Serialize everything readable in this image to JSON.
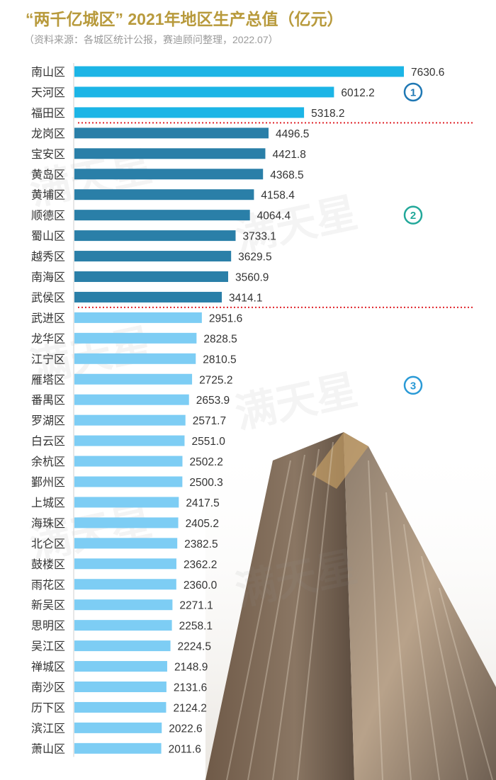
{
  "header": {
    "title": "“两千亿城区” 2021年地区生产总值（亿元）",
    "subtitle": "（资料来源：各城区统计公报，赛迪顾问整理，2022.07）"
  },
  "watermark": {
    "text": "满天星"
  },
  "colors": {
    "tier1": "#1cb5e6",
    "tier2": "#2a7fa8",
    "tier3": "#7dcdf4",
    "divider": "#e0242b",
    "title": "#b89a3c",
    "badge1": "#1f78b4",
    "badge2": "#22a89a",
    "badge3": "#2a9ad6"
  },
  "chart_data": {
    "type": "bar",
    "orientation": "horizontal",
    "categories": [
      "南山区",
      "天河区",
      "福田区",
      "龙岗区",
      "宝安区",
      "黄岛区",
      "黄埔区",
      "顺德区",
      "蜀山区",
      "越秀区",
      "南海区",
      "武侯区",
      "武进区",
      "龙华区",
      "江宁区",
      "雁塔区",
      "番禺区",
      "罗湖区",
      "白云区",
      "余杭区",
      "鄞州区",
      "上城区",
      "海珠区",
      "北仑区",
      "鼓楼区",
      "雨花区",
      "新吴区",
      "思明区",
      "吴江区",
      "禅城区",
      "南沙区",
      "历下区",
      "滨江区",
      "萧山区"
    ],
    "values": [
      7630.6,
      6012.2,
      5318.2,
      4496.5,
      4421.8,
      4368.5,
      4158.4,
      4064.4,
      3733.1,
      3629.5,
      3560.9,
      3414.1,
      2951.6,
      2828.5,
      2810.5,
      2725.2,
      2653.9,
      2571.7,
      2551.0,
      2502.2,
      2500.3,
      2417.5,
      2405.2,
      2382.5,
      2362.2,
      2360.0,
      2271.1,
      2258.1,
      2224.5,
      2148.9,
      2131.6,
      2124.2,
      2022.6,
      2011.6
    ],
    "value_labels": [
      "7630.6",
      "6012.2",
      "5318.2",
      "4496.5",
      "4421.8",
      "4368.5",
      "4158.4",
      "4064.4",
      "3733.1",
      "3629.5",
      "3560.9",
      "3414.1",
      "2951.6",
      "2828.5",
      "2810.5",
      "2725.2",
      "2653.9",
      "2571.7",
      "2551.0",
      "2502.2",
      "2500.3",
      "2417.5",
      "2405.2",
      "2382.5",
      "2362.2",
      "2360.0",
      "2271.1",
      "2258.1",
      "2224.5",
      "2148.9",
      "2131.6",
      "2124.2",
      "2022.6",
      "2011.6"
    ],
    "xlim": [
      0,
      7630.6
    ],
    "grid": false,
    "tiers": [
      {
        "label": "1",
        "start": 0,
        "end": 2,
        "color_key": "tier1",
        "badge_color_key": "badge1"
      },
      {
        "label": "2",
        "start": 3,
        "end": 11,
        "color_key": "tier2",
        "badge_color_key": "badge2"
      },
      {
        "label": "3",
        "start": 12,
        "end": 33,
        "color_key": "tier3",
        "badge_color_key": "badge3"
      }
    ]
  }
}
